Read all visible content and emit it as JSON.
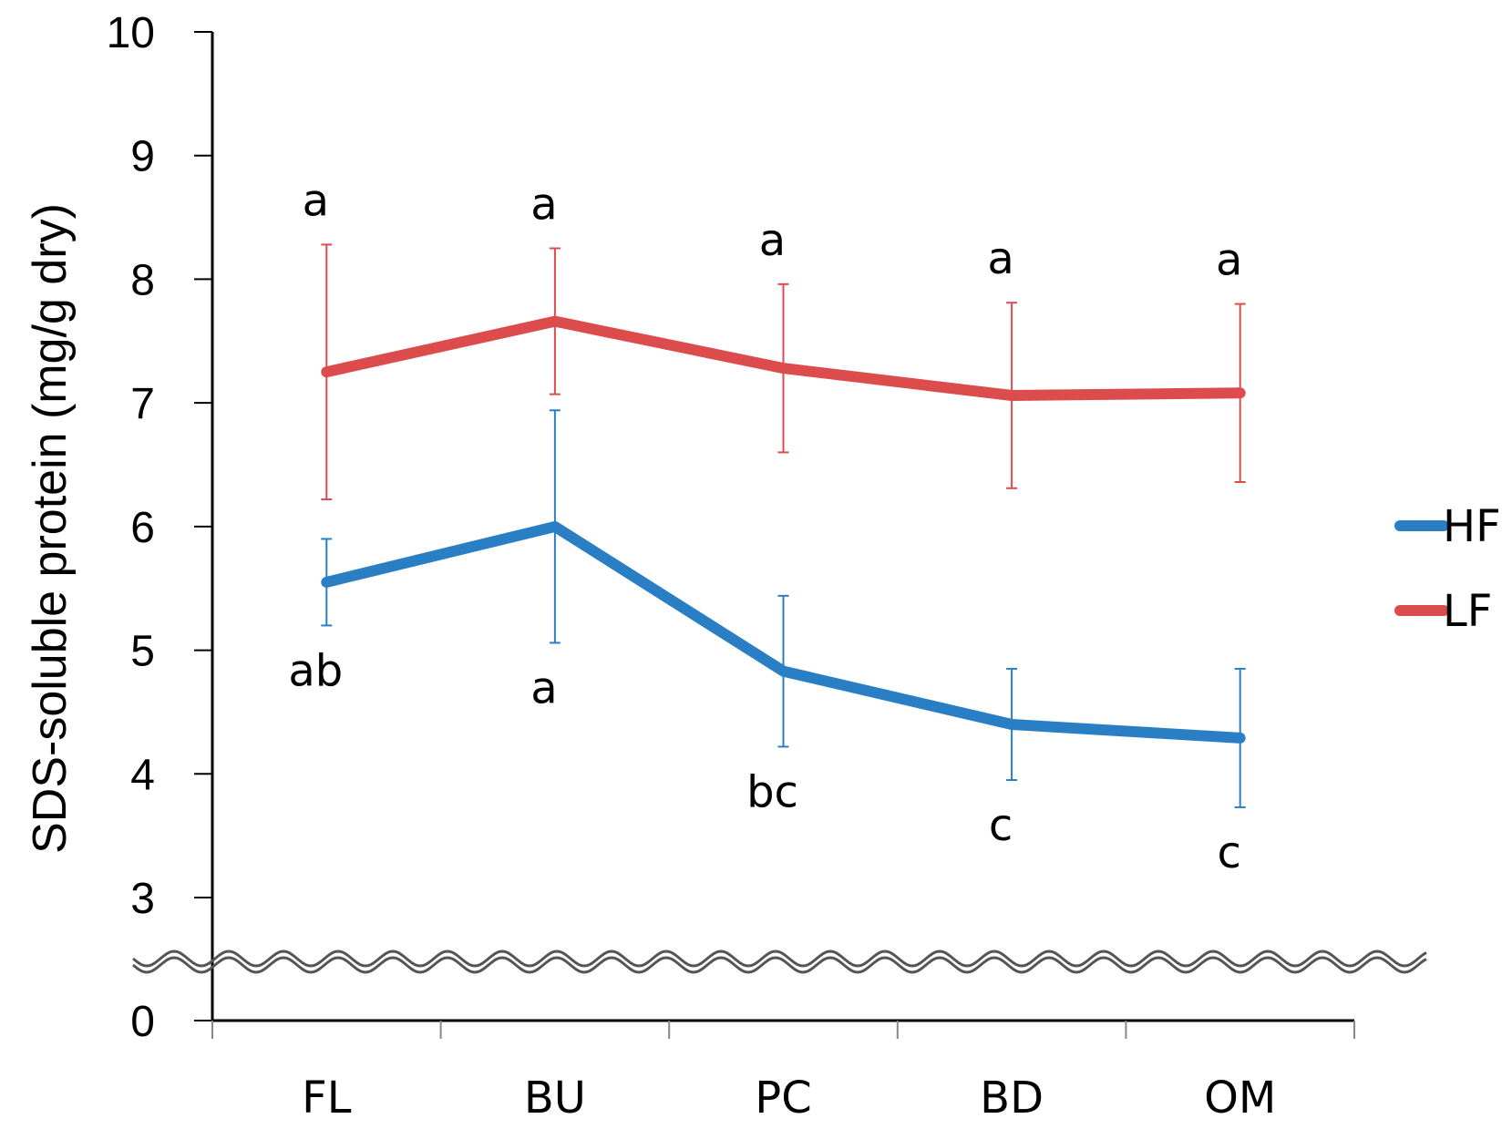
{
  "chart_data": {
    "type": "line",
    "categories": [
      "FL",
      "BU",
      "PC",
      "BD",
      "OM"
    ],
    "ylabel": "SDS-soluble protein (mg/g dry)",
    "y_ticks": [
      "0",
      "3",
      "4",
      "5",
      "6",
      "7",
      "8",
      "9",
      "10"
    ],
    "y_axis_break": [
      0,
      3
    ],
    "ylim": [
      0,
      10
    ],
    "legend_position": "right",
    "series": [
      {
        "name": "HF",
        "color": "#2a7fc4",
        "values": [
          5.55,
          6.0,
          4.83,
          4.4,
          4.29
        ],
        "error": [
          0.35,
          0.94,
          0.61,
          0.45,
          0.56
        ],
        "significance": [
          "ab",
          "a",
          "bc",
          "c",
          "c"
        ]
      },
      {
        "name": "LF",
        "color": "#dc4c4c",
        "values": [
          7.25,
          7.66,
          7.28,
          7.06,
          7.08
        ],
        "error": [
          1.03,
          0.59,
          0.68,
          0.75,
          0.72
        ],
        "significance": [
          "a",
          "a",
          "a",
          "a",
          "a"
        ]
      }
    ]
  }
}
